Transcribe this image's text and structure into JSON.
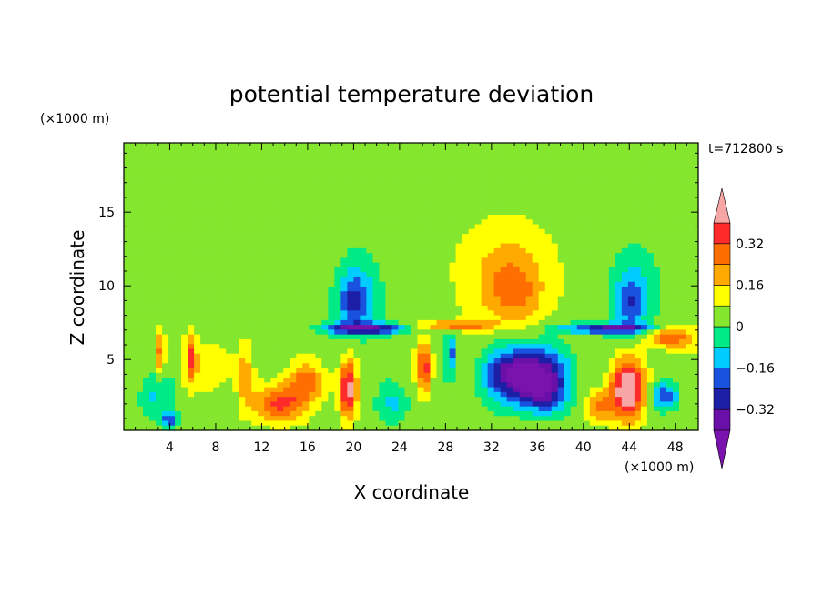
{
  "chart_data": {
    "type": "heatmap",
    "title": "potential temperature deviation",
    "time_label": "t=712800 s",
    "xlabel": "X coordinate",
    "ylabel": "Z coordinate",
    "x_unit": "(×1000 m)",
    "y_unit": "(×1000 m)",
    "xlim": [
      0,
      50
    ],
    "ylim": [
      0.2,
      19.7
    ],
    "x_ticks": [
      4,
      8,
      12,
      16,
      20,
      24,
      28,
      32,
      36,
      40,
      44,
      48
    ],
    "y_ticks": [
      5,
      10,
      15
    ],
    "colorbar": {
      "levels": [
        -0.48,
        -0.4,
        -0.32,
        -0.24,
        -0.16,
        -0.08,
        0,
        0.08,
        0.16,
        0.24,
        0.32,
        0.4
      ],
      "tick_labels": [
        "0.32",
        "0.16",
        "0",
        "−0.16",
        "−0.32"
      ],
      "tick_values": [
        0.32,
        0.16,
        0,
        -0.16,
        -0.32
      ],
      "colors": [
        "#7a12ad",
        "#6a0fa8",
        "#1c1ea6",
        "#1a52e0",
        "#00ccff",
        "#00eb85",
        "#85e62e",
        "#ffff00",
        "#ffaa00",
        "#ff6e00",
        "#ff2a2a",
        "#f7a6a6"
      ],
      "extend": "both"
    },
    "background_value": 0.04,
    "features": [
      {
        "x": 20.5,
        "z": 9.5,
        "amp": -0.14,
        "sx": 2.0,
        "sz": 3.0
      },
      {
        "x": 20.0,
        "z": 8.8,
        "amp": -0.2,
        "sx": 1.3,
        "sz": 1.8
      },
      {
        "x": 44.5,
        "z": 9.5,
        "amp": -0.14,
        "sx": 2.0,
        "sz": 3.0
      },
      {
        "x": 44.0,
        "z": 8.8,
        "amp": -0.16,
        "sx": 1.2,
        "sz": 1.8
      },
      {
        "x": 33.5,
        "z": 10.5,
        "amp": 0.18,
        "sx": 3.8,
        "sz": 3.5
      },
      {
        "x": 34.0,
        "z": 9.5,
        "amp": 0.1,
        "sx": 2.0,
        "sz": 1.8
      },
      {
        "x": 24.0,
        "z": 14.0,
        "amp": 0.02,
        "sx": 6.0,
        "sz": 5.0
      },
      {
        "x": 8.0,
        "z": 16.0,
        "amp": 0.02,
        "sx": 5.0,
        "sz": 3.0
      },
      {
        "x": 35.0,
        "z": 4.0,
        "amp": -0.56,
        "sx": 3.2,
        "sz": 1.8
      },
      {
        "x": 36.5,
        "z": 2.5,
        "amp": -0.2,
        "sx": 2.0,
        "sz": 1.2
      },
      {
        "x": 43.8,
        "z": 3.0,
        "amp": 0.48,
        "sx": 1.5,
        "sz": 2.0
      },
      {
        "x": 41.5,
        "z": 1.8,
        "amp": 0.22,
        "sx": 1.2,
        "sz": 1.0
      },
      {
        "x": 13.5,
        "z": 2.0,
        "amp": 0.32,
        "sx": 2.2,
        "sz": 1.2
      },
      {
        "x": 16.0,
        "z": 3.5,
        "amp": 0.22,
        "sx": 2.0,
        "sz": 1.2
      },
      {
        "x": 19.5,
        "z": 3.0,
        "amp": 0.4,
        "sx": 0.7,
        "sz": 2.0
      },
      {
        "x": 26.2,
        "z": 4.5,
        "amp": 0.32,
        "sx": 0.6,
        "sz": 1.6
      },
      {
        "x": 8.0,
        "z": 4.5,
        "amp": 0.14,
        "sx": 1.4,
        "sz": 1.6
      },
      {
        "x": 2.5,
        "z": 2.5,
        "amp": -0.12,
        "sx": 1.5,
        "sz": 1.5
      },
      {
        "x": 23.5,
        "z": 2.0,
        "amp": -0.12,
        "sx": 1.5,
        "sz": 1.2
      },
      {
        "x": 47.0,
        "z": 2.5,
        "amp": -0.26,
        "sx": 1.2,
        "sz": 0.8
      },
      {
        "x": 4.0,
        "z": 0.9,
        "amp": -0.26,
        "sx": 0.8,
        "sz": 0.5
      },
      {
        "x": 28.5,
        "z": 5.5,
        "amp": -0.22,
        "sx": 0.5,
        "sz": 1.2
      },
      {
        "x": 21.0,
        "z": 7.1,
        "amp": -0.4,
        "sx": 3.5,
        "sz": 0.35
      },
      {
        "x": 42.0,
        "z": 7.1,
        "amp": -0.36,
        "sx": 4.0,
        "sz": 0.35
      },
      {
        "x": 29.0,
        "z": 7.3,
        "amp": 0.26,
        "sx": 3.0,
        "sz": 0.3
      },
      {
        "x": 47.5,
        "z": 6.5,
        "amp": 0.28,
        "sx": 2.0,
        "sz": 0.8
      },
      {
        "x": 3.2,
        "z": 5.5,
        "amp": 0.26,
        "sx": 0.4,
        "sz": 1.5
      },
      {
        "x": 5.8,
        "z": 5.0,
        "amp": 0.3,
        "sx": 0.5,
        "sz": 1.5
      },
      {
        "x": 10.5,
        "z": 4.0,
        "amp": 0.14,
        "sx": 0.6,
        "sz": 2.0
      }
    ]
  }
}
